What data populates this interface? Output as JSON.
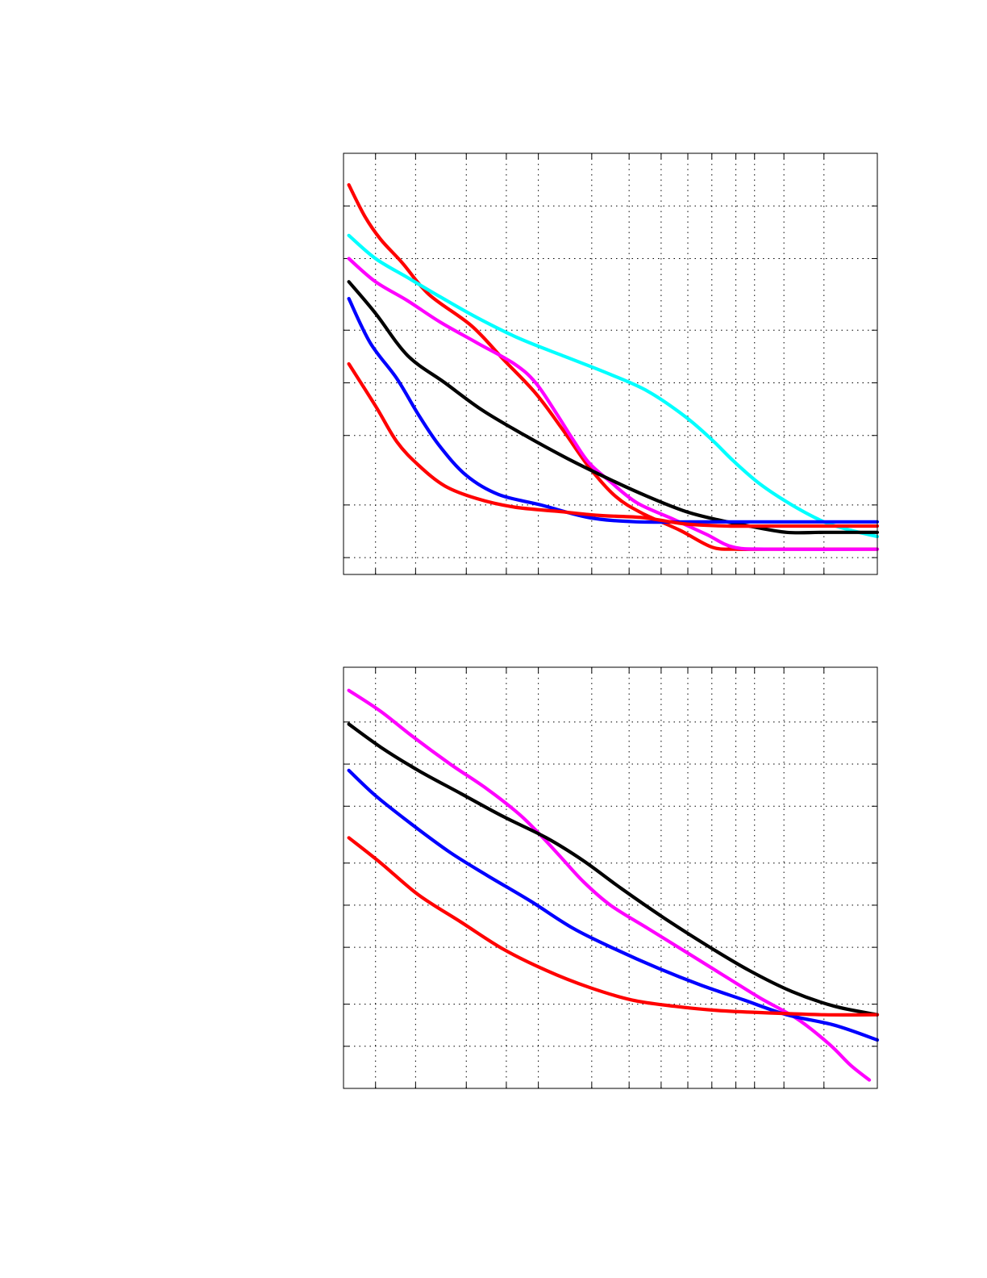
{
  "chart_data": [
    {
      "type": "line",
      "title": "",
      "xlabel": "",
      "ylabel": "",
      "xlim": [
        0,
        100
      ],
      "ylim": [
        0,
        100
      ],
      "grid": true,
      "legend": "none",
      "x_gridlines": [
        6,
        13.5,
        23,
        30.5,
        36.5,
        46.5,
        53.5,
        59.5,
        64.5,
        69,
        73.5,
        77,
        82.5,
        90
      ],
      "y_gridlines": [
        4,
        16.5,
        33,
        45.5,
        58,
        75,
        87.5
      ],
      "series": [
        {
          "color": "#ff0000",
          "values": [
            [
              1,
              92.5
            ],
            [
              4,
              85
            ],
            [
              7,
              79.5
            ],
            [
              11,
              74
            ],
            [
              16,
              66.5
            ],
            [
              24,
              59
            ],
            [
              30,
              51
            ],
            [
              36,
              43
            ],
            [
              41,
              34.5
            ],
            [
              46,
              25.5
            ],
            [
              51,
              18.5
            ],
            [
              56,
              14.5
            ],
            [
              63,
              10.5
            ],
            [
              69,
              6.5
            ],
            [
              73.5,
              6.0
            ],
            [
              80,
              6.0
            ],
            [
              100,
              6.0
            ]
          ]
        },
        {
          "color": "#00ffff",
          "values": [
            [
              1,
              80.5
            ],
            [
              6,
              75
            ],
            [
              12,
              70.5
            ],
            [
              18,
              66
            ],
            [
              25,
              61
            ],
            [
              33,
              56
            ],
            [
              42,
              51.5
            ],
            [
              50,
              47.5
            ],
            [
              57,
              43.5
            ],
            [
              64,
              37.5
            ],
            [
              69,
              32
            ],
            [
              73,
              27
            ],
            [
              78,
              21.5
            ],
            [
              84,
              16.5
            ],
            [
              90,
              12.5
            ],
            [
              95,
              10.5
            ],
            [
              100,
              9
            ]
          ]
        },
        {
          "color": "#ff00ff",
          "values": [
            [
              1,
              75
            ],
            [
              6,
              69.5
            ],
            [
              12,
              65
            ],
            [
              18,
              60
            ],
            [
              25,
              55
            ],
            [
              32,
              50
            ],
            [
              36,
              45.5
            ],
            [
              40,
              38
            ],
            [
              43,
              32
            ],
            [
              46,
              26.5
            ],
            [
              50,
              22
            ],
            [
              55,
              17
            ],
            [
              62,
              13
            ],
            [
              68,
              9.5
            ],
            [
              73,
              6.5
            ],
            [
              80,
              6.0
            ],
            [
              100,
              6.0
            ]
          ]
        },
        {
          "color": "#000000",
          "values": [
            [
              1,
              69.5
            ],
            [
              6,
              62
            ],
            [
              12,
              52
            ],
            [
              19,
              45.5
            ],
            [
              26,
              39
            ],
            [
              34,
              33
            ],
            [
              42,
              27.5
            ],
            [
              50,
              22.5
            ],
            [
              57,
              18.5
            ],
            [
              64,
              15
            ],
            [
              70,
              13
            ],
            [
              76,
              11.5
            ],
            [
              83,
              10
            ],
            [
              90,
              10
            ],
            [
              100,
              10
            ]
          ]
        },
        {
          "color": "#0000ff",
          "values": [
            [
              1,
              65.5
            ],
            [
              5,
              55
            ],
            [
              10,
              46.5
            ],
            [
              14,
              38
            ],
            [
              18,
              30.5
            ],
            [
              23,
              23.5
            ],
            [
              29,
              19
            ],
            [
              37,
              16.5
            ],
            [
              46,
              13.5
            ],
            [
              55,
              12.5
            ],
            [
              65,
              12.5
            ],
            [
              80,
              12.5
            ],
            [
              100,
              12.5
            ]
          ]
        },
        {
          "color": "#ff0000",
          "values": [
            [
              1,
              50
            ],
            [
              6,
              40
            ],
            [
              10,
              31.5
            ],
            [
              14,
              26
            ],
            [
              19,
              21
            ],
            [
              25,
              18
            ],
            [
              32,
              16
            ],
            [
              40,
              15
            ],
            [
              48,
              14
            ],
            [
              56,
              13.5
            ],
            [
              64,
              12
            ],
            [
              72,
              11.5
            ],
            [
              80,
              11.5
            ],
            [
              100,
              11.5
            ]
          ]
        }
      ]
    },
    {
      "type": "line",
      "title": "",
      "xlabel": "",
      "ylabel": "",
      "xlim": [
        0,
        100
      ],
      "ylim": [
        0,
        100
      ],
      "grid": true,
      "legend": "none",
      "x_gridlines": [
        6,
        13.5,
        23,
        30.5,
        36.5,
        46.5,
        53.5,
        59.5,
        64.5,
        69,
        73.5,
        77,
        82.5,
        90
      ],
      "y_gridlines": [
        10,
        20,
        33.5,
        43.5,
        53.5,
        67,
        77,
        87
      ],
      "series": [
        {
          "color": "#ff00ff",
          "values": [
            [
              1,
              94.5
            ],
            [
              7,
              89.5
            ],
            [
              13,
              83.5
            ],
            [
              20,
              77
            ],
            [
              27,
              71
            ],
            [
              33,
              65
            ],
            [
              37,
              60
            ],
            [
              41,
              54.5
            ],
            [
              45,
              49
            ],
            [
              50,
              43.5
            ],
            [
              57,
              38
            ],
            [
              64,
              32.5
            ],
            [
              71,
              27
            ],
            [
              78,
              21.5
            ],
            [
              85,
              16.5
            ],
            [
              91,
              10.5
            ],
            [
              95,
              5.5
            ],
            [
              98.5,
              2
            ]
          ]
        },
        {
          "color": "#000000",
          "values": [
            [
              1,
              86.5
            ],
            [
              7,
              81
            ],
            [
              14,
              75.5
            ],
            [
              22,
              70
            ],
            [
              30,
              64.5
            ],
            [
              38,
              59.5
            ],
            [
              45,
              54
            ],
            [
              52,
              47.5
            ],
            [
              60,
              40.5
            ],
            [
              68,
              34
            ],
            [
              76,
              28
            ],
            [
              84,
              23
            ],
            [
              92,
              19.5
            ],
            [
              100,
              17.5
            ]
          ]
        },
        {
          "color": "#0000ff",
          "values": [
            [
              1,
              75.5
            ],
            [
              6,
              69.5
            ],
            [
              13,
              62.5
            ],
            [
              20,
              56
            ],
            [
              27,
              50.5
            ],
            [
              35,
              44.5
            ],
            [
              43,
              38
            ],
            [
              51,
              33
            ],
            [
              59,
              28.5
            ],
            [
              67,
              24.5
            ],
            [
              75,
              21
            ],
            [
              83,
              17.5
            ],
            [
              92,
              15
            ],
            [
              100,
              11.5
            ]
          ]
        },
        {
          "color": "#ff0000",
          "values": [
            [
              1,
              59.5
            ],
            [
              7,
              53.5
            ],
            [
              14,
              46
            ],
            [
              22,
              39.5
            ],
            [
              30,
              33
            ],
            [
              38,
              28
            ],
            [
              46,
              24
            ],
            [
              54,
              21
            ],
            [
              62,
              19.5
            ],
            [
              70,
              18.5
            ],
            [
              78,
              18
            ],
            [
              90,
              17.5
            ],
            [
              100,
              17.5
            ]
          ]
        }
      ]
    }
  ]
}
